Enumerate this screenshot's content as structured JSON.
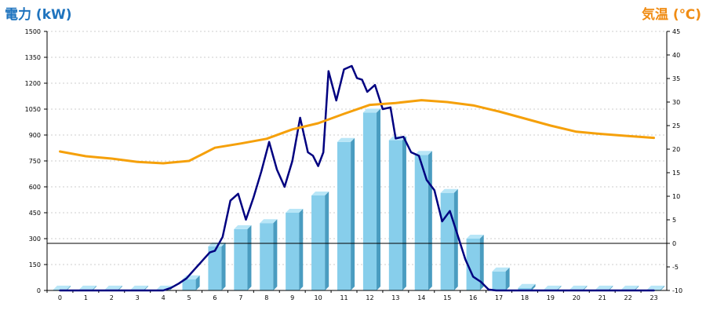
{
  "colors": {
    "left_axis_title": "#1e73be",
    "right_axis_title": "#f08c14",
    "bar_front": "#87ceeb",
    "bar_side": "#4a9cc0",
    "bar_top": "#b8e6f7",
    "power_line": "#000080",
    "temp_line": "#f5a00a",
    "grid": "#cccccc",
    "zero_line": "#000000"
  },
  "titles": {
    "left": "電力 (kW)",
    "right": "気温 (℃)"
  },
  "chart_data": {
    "type": "bar",
    "categories": [
      "0",
      "1",
      "2",
      "3",
      "4",
      "5",
      "6",
      "7",
      "8",
      "9",
      "10",
      "11",
      "12",
      "13",
      "14",
      "15",
      "16",
      "17",
      "18",
      "19",
      "20",
      "21",
      "22",
      "23"
    ],
    "y_left": {
      "label": "電力 (kW)",
      "range": [
        0,
        1500
      ],
      "ticks": [
        0,
        150,
        300,
        450,
        600,
        750,
        900,
        1050,
        1200,
        1350,
        1500
      ]
    },
    "y_right": {
      "label": "気温 (℃)",
      "range": [
        -10,
        45
      ],
      "ticks": [
        -10,
        -5,
        0,
        5,
        10,
        15,
        20,
        25,
        30,
        35,
        40,
        45
      ]
    },
    "grid": true,
    "series": [
      {
        "type": "bar",
        "axis": "left",
        "values": [
          5,
          5,
          5,
          5,
          5,
          65,
          255,
          355,
          390,
          450,
          550,
          860,
          1030,
          870,
          785,
          565,
          300,
          110,
          15,
          5,
          5,
          5,
          5,
          5
        ]
      },
      {
        "type": "line",
        "axis": "left",
        "x": [
          0,
          0.5,
          1,
          1.5,
          2,
          2.5,
          3,
          3.5,
          4,
          4.3,
          4.6,
          4.9,
          5.2,
          5.5,
          5.8,
          6,
          6.3,
          6.6,
          6.9,
          7.2,
          7.5,
          7.8,
          8.1,
          8.4,
          8.7,
          9,
          9.3,
          9.6,
          9.8,
          10,
          10.2,
          10.4,
          10.7,
          11,
          11.3,
          11.5,
          11.7,
          11.9,
          12.2,
          12.5,
          12.8,
          13,
          13.3,
          13.6,
          13.9,
          14.2,
          14.5,
          14.8,
          15.1,
          15.4,
          15.7,
          16,
          16.3,
          16.6,
          16.9,
          17.2,
          17.5,
          17.8,
          18,
          18.5,
          19,
          20,
          21,
          22,
          23
        ],
        "values": [
          0,
          0,
          0,
          0,
          0,
          0,
          0,
          0,
          0,
          15,
          40,
          70,
          120,
          170,
          220,
          230,
          310,
          520,
          560,
          410,
          540,
          690,
          860,
          700,
          600,
          750,
          1000,
          800,
          780,
          720,
          800,
          1270,
          1100,
          1280,
          1300,
          1230,
          1220,
          1150,
          1190,
          1050,
          1060,
          880,
          890,
          800,
          780,
          640,
          580,
          400,
          460,
          320,
          180,
          80,
          50,
          5,
          0,
          0,
          0,
          0,
          0,
          0,
          0,
          0,
          0,
          0,
          0
        ]
      },
      {
        "type": "line",
        "axis": "right",
        "x": [
          0,
          1,
          2,
          3,
          4,
          5,
          6,
          7,
          8,
          9,
          10,
          11,
          12,
          13,
          14,
          15,
          16,
          17,
          18,
          19,
          20,
          21,
          22,
          23
        ],
        "values": [
          19.5,
          18.5,
          18,
          17.3,
          17,
          17.5,
          20.3,
          21.2,
          22.2,
          24.2,
          25.5,
          27.5,
          29.4,
          29.8,
          30.4,
          30,
          29.3,
          28,
          26.5,
          25,
          23.7,
          23.2,
          22.8,
          22.4
        ]
      }
    ]
  }
}
